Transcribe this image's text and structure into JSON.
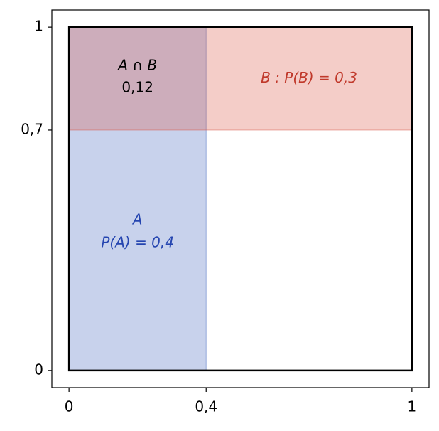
{
  "chart_data": {
    "type": "area-diagram",
    "xlim": [
      -0.05,
      1.05
    ],
    "ylim": [
      -0.05,
      1.05
    ],
    "xticks": [
      0,
      {
        "value": 0.4,
        "label": "0,4"
      },
      1
    ],
    "yticks": [
      0,
      {
        "value": 0.7,
        "label": "0,7"
      },
      1
    ],
    "square": {
      "x": [
        0,
        1
      ],
      "y": [
        0,
        1
      ]
    },
    "events": [
      {
        "name": "A",
        "label": "P(A) = 0,4",
        "x": [
          0,
          0.4
        ],
        "y": [
          0,
          1
        ],
        "color": "#4a6bbf",
        "text_color": "#2545b0"
      },
      {
        "name": "B : P(B) = 0,3",
        "x": [
          0,
          1
        ],
        "y": [
          0.7,
          1
        ],
        "color": "#d9584a",
        "text_color": "#c0392b"
      }
    ],
    "intersection": {
      "name": "A ∩ B",
      "label": "0,12"
    }
  }
}
